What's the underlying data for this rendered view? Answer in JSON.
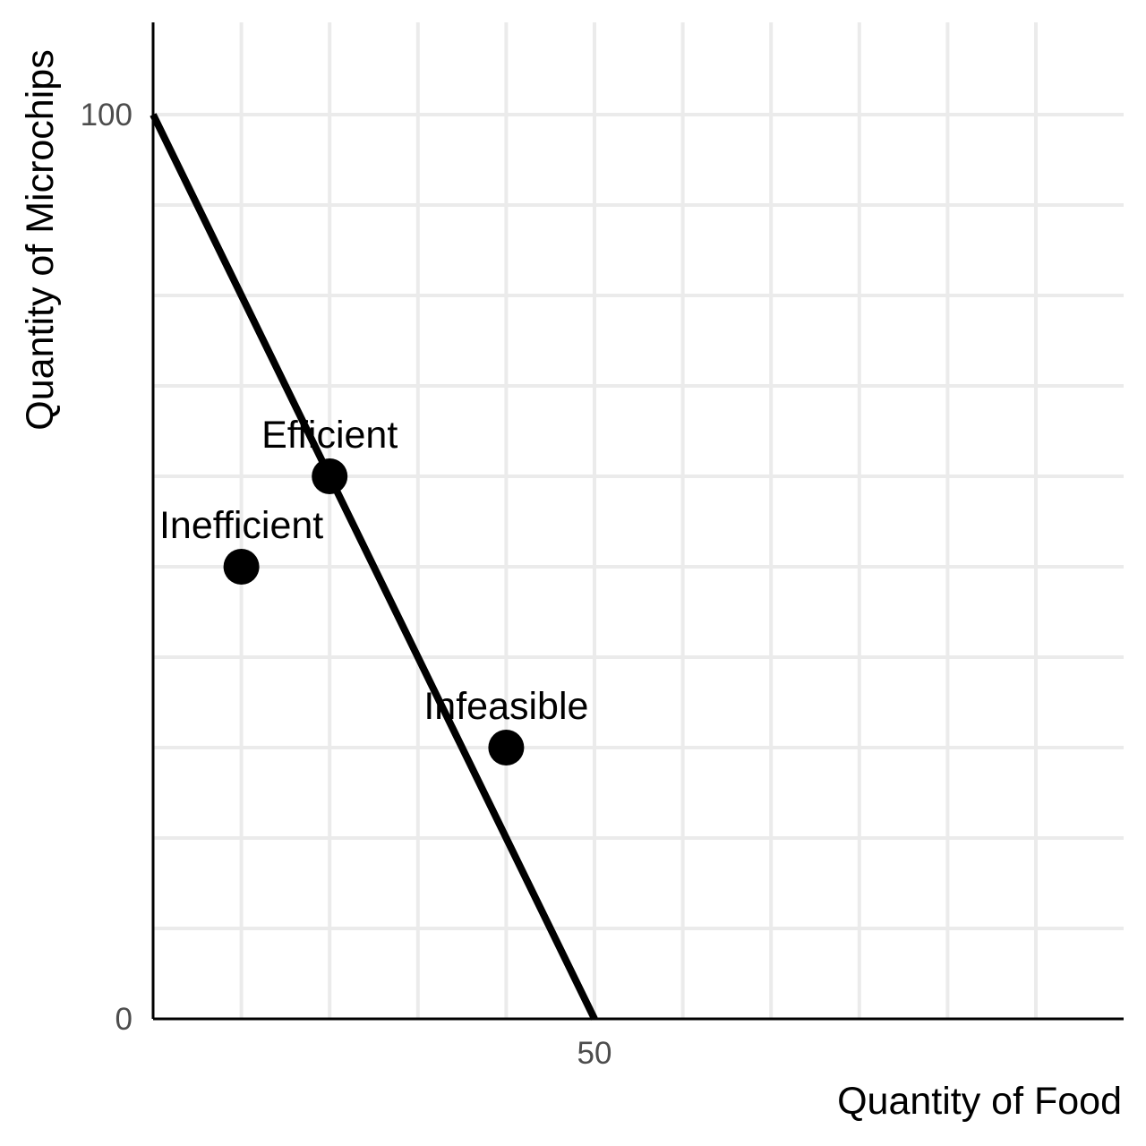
{
  "chart_data": {
    "type": "line",
    "title": "",
    "xlabel": "Quantity of Food",
    "ylabel": "Quantity of Microchips",
    "xlim": [
      0,
      110
    ],
    "ylim": [
      0,
      110
    ],
    "x_ticks": [
      {
        "value": 50,
        "label": "50"
      }
    ],
    "y_ticks": [
      {
        "value": 0,
        "label": "0"
      },
      {
        "value": 100,
        "label": "100"
      }
    ],
    "x_grid": [
      10,
      20,
      30,
      40,
      50,
      60,
      70,
      80,
      90,
      100
    ],
    "y_grid": [
      10,
      20,
      30,
      40,
      50,
      60,
      70,
      80,
      90,
      100
    ],
    "grid": true,
    "line_series": {
      "x": [
        0,
        50
      ],
      "y": [
        100,
        0
      ]
    },
    "points": [
      {
        "label": "Efficient",
        "x": 20,
        "y": 60
      },
      {
        "label": "Inefficient",
        "x": 10,
        "y": 50
      },
      {
        "label": "Infeasible",
        "x": 40,
        "y": 30
      }
    ]
  }
}
